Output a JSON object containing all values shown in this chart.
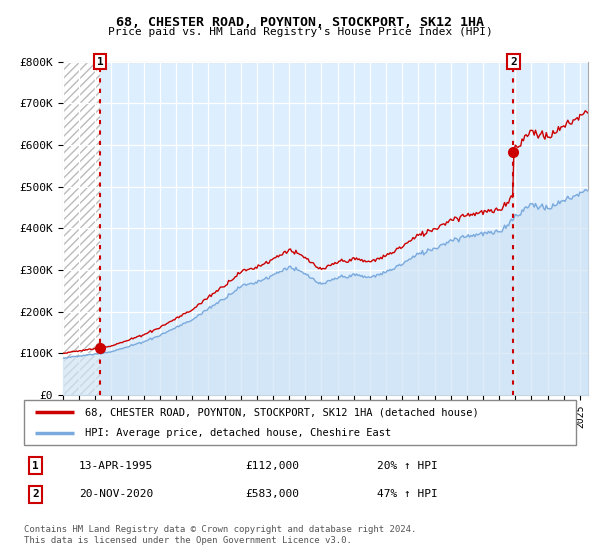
{
  "title1": "68, CHESTER ROAD, POYNTON, STOCKPORT, SK12 1HA",
  "title2": "Price paid vs. HM Land Registry's House Price Index (HPI)",
  "ylim": [
    0,
    800000
  ],
  "yticks": [
    0,
    100000,
    200000,
    300000,
    400000,
    500000,
    600000,
    700000,
    800000
  ],
  "ytick_labels": [
    "£0",
    "£100K",
    "£200K",
    "£300K",
    "£400K",
    "£500K",
    "£600K",
    "£700K",
    "£800K"
  ],
  "sale1_date_num": 1995.29,
  "sale1_price": 112000,
  "sale1_label": "1",
  "sale1_date_str": "13-APR-1995",
  "sale1_price_str": "£112,000",
  "sale1_hpi_str": "20% ↑ HPI",
  "sale2_date_num": 2020.88,
  "sale2_price": 583000,
  "sale2_label": "2",
  "sale2_date_str": "20-NOV-2020",
  "sale2_price_str": "£583,000",
  "sale2_hpi_str": "47% ↑ HPI",
  "hpi_color": "#7aaadd",
  "hpi_fill_color": "#d0e4f5",
  "price_color": "#cc0000",
  "legend_line1": "68, CHESTER ROAD, POYNTON, STOCKPORT, SK12 1HA (detached house)",
  "legend_line2": "HPI: Average price, detached house, Cheshire East",
  "footer": "Contains HM Land Registry data © Crown copyright and database right 2024.\nThis data is licensed under the Open Government Licence v3.0.",
  "xmin": 1993.0,
  "xmax": 2025.5,
  "chart_bg": "#ddeeff",
  "hatch_color": "#bbbbbb"
}
